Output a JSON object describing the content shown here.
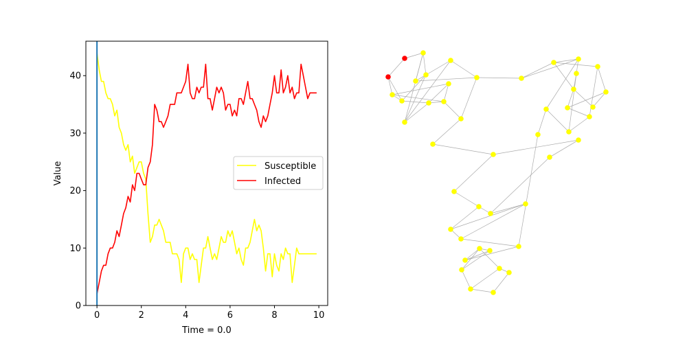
{
  "chart_data": [
    {
      "type": "line",
      "xlabel": "Time = 0.0",
      "ylabel": "Value",
      "xlim": [
        -0.5,
        10.4
      ],
      "ylim": [
        0,
        46
      ],
      "xticks": [
        0,
        2,
        4,
        6,
        8,
        10
      ],
      "yticks": [
        0,
        10,
        20,
        30,
        40
      ],
      "grid": false,
      "legend_position": "center-right",
      "time_marker_x": 0.0,
      "time_marker_color": "#1f77b4",
      "x": [
        0.0,
        0.1,
        0.2,
        0.3,
        0.4,
        0.5,
        0.6,
        0.7,
        0.8,
        0.9,
        1.0,
        1.1,
        1.2,
        1.3,
        1.4,
        1.5,
        1.6,
        1.7,
        1.8,
        1.9,
        2.0,
        2.1,
        2.2,
        2.3,
        2.4,
        2.5,
        2.6,
        2.7,
        2.8,
        2.9,
        3.0,
        3.1,
        3.2,
        3.3,
        3.4,
        3.5,
        3.6,
        3.7,
        3.8,
        3.9,
        4.0,
        4.1,
        4.2,
        4.3,
        4.4,
        4.5,
        4.6,
        4.7,
        4.8,
        4.9,
        5.0,
        5.1,
        5.2,
        5.3,
        5.4,
        5.5,
        5.6,
        5.7,
        5.8,
        5.9,
        6.0,
        6.1,
        6.2,
        6.3,
        6.4,
        6.5,
        6.6,
        6.7,
        6.8,
        6.9,
        7.0,
        7.1,
        7.2,
        7.3,
        7.4,
        7.5,
        7.6,
        7.7,
        7.8,
        7.9,
        8.0,
        8.1,
        8.2,
        8.3,
        8.4,
        8.5,
        8.6,
        8.7,
        8.8,
        8.9,
        9.0,
        9.1,
        9.2,
        9.3,
        9.4,
        9.5,
        9.6,
        9.7,
        9.8,
        9.9
      ],
      "series": [
        {
          "name": "Susceptible",
          "color": "#ffff00",
          "values": [
            44,
            41,
            39,
            39,
            37,
            36,
            36,
            35,
            33,
            34,
            31,
            30,
            28,
            27,
            28,
            25,
            26,
            23,
            24,
            25,
            25,
            23,
            22,
            16,
            11,
            12,
            14,
            14,
            15,
            14,
            13,
            11,
            11,
            11,
            9,
            9,
            9,
            8,
            4,
            9,
            10,
            10,
            8,
            9,
            8,
            8,
            4,
            7,
            10,
            10,
            12,
            10,
            8,
            9,
            8,
            10,
            12,
            11,
            11,
            13,
            12,
            13,
            11,
            9,
            10,
            8,
            7,
            10,
            10,
            11,
            13,
            15,
            13,
            14,
            13,
            10,
            6,
            9,
            9,
            5,
            9,
            7,
            6,
            9,
            8,
            10,
            9,
            9,
            4,
            7,
            10,
            9,
            9,
            9,
            9,
            9,
            9,
            9,
            9,
            9
          ]
        },
        {
          "name": "Infected",
          "color": "#ff0000",
          "values": [
            2,
            4,
            6,
            7,
            7,
            9,
            10,
            10,
            11,
            13,
            12,
            14,
            16,
            17,
            19,
            18,
            21,
            20,
            23,
            23,
            22,
            21,
            21,
            24,
            25,
            28,
            35,
            34,
            32,
            32,
            31,
            32,
            33,
            35,
            35,
            35,
            37,
            37,
            37,
            38,
            39,
            42,
            37,
            36,
            36,
            38,
            37,
            38,
            38,
            42,
            36,
            36,
            34,
            36,
            38,
            37,
            38,
            37,
            34,
            35,
            35,
            33,
            34,
            33,
            36,
            36,
            35,
            37,
            39,
            36,
            36,
            35,
            34,
            32,
            31,
            33,
            32,
            33,
            35,
            37,
            40,
            37,
            37,
            41,
            37,
            38,
            40,
            37,
            38,
            36,
            37,
            37,
            42,
            40,
            38,
            36,
            37,
            37,
            37,
            37
          ]
        }
      ]
    },
    {
      "type": "network",
      "node_colors": {
        "susceptible": "#ffff00",
        "infected": "#ff0000"
      },
      "edge_color": "#aaaaaa",
      "nodes": [
        {
          "state": "infected"
        },
        {
          "state": "infected"
        },
        {
          "state": "susceptible"
        },
        {
          "state": "susceptible"
        },
        {
          "state": "susceptible"
        },
        {
          "state": "susceptible"
        },
        {
          "state": "susceptible"
        },
        {
          "state": "susceptible"
        },
        {
          "state": "susceptible"
        },
        {
          "state": "susceptible"
        },
        {
          "state": "susceptible"
        },
        {
          "state": "susceptible"
        },
        {
          "state": "susceptible"
        },
        {
          "state": "susceptible"
        },
        {
          "state": "susceptible"
        },
        {
          "state": "susceptible"
        },
        {
          "state": "susceptible"
        },
        {
          "state": "susceptible"
        },
        {
          "state": "susceptible"
        },
        {
          "state": "susceptible"
        },
        {
          "state": "susceptible"
        },
        {
          "state": "susceptible"
        },
        {
          "state": "susceptible"
        },
        {
          "state": "susceptible"
        },
        {
          "state": "susceptible"
        },
        {
          "state": "susceptible"
        },
        {
          "state": "susceptible"
        },
        {
          "state": "susceptible"
        },
        {
          "state": "susceptible"
        },
        {
          "state": "susceptible"
        },
        {
          "state": "susceptible"
        },
        {
          "state": "susceptible"
        },
        {
          "state": "susceptible"
        },
        {
          "state": "susceptible"
        },
        {
          "state": "susceptible"
        },
        {
          "state": "susceptible"
        },
        {
          "state": "susceptible"
        },
        {
          "state": "susceptible"
        },
        {
          "state": "susceptible"
        },
        {
          "state": "susceptible"
        },
        {
          "state": "susceptible"
        },
        {
          "state": "susceptible"
        },
        {
          "state": "susceptible"
        },
        {
          "state": "susceptible"
        },
        {
          "state": "susceptible"
        },
        {
          "state": "susceptible"
        }
      ],
      "edges": [
        [
          0,
          1
        ],
        [
          0,
          2
        ],
        [
          0,
          3
        ],
        [
          1,
          4
        ],
        [
          4,
          5
        ],
        [
          4,
          6
        ],
        [
          4,
          7
        ],
        [
          5,
          6
        ],
        [
          6,
          3
        ],
        [
          3,
          8
        ],
        [
          2,
          3
        ],
        [
          2,
          9
        ],
        [
          9,
          8
        ],
        [
          9,
          10
        ],
        [
          8,
          10
        ],
        [
          6,
          7
        ],
        [
          7,
          8
        ],
        [
          7,
          11
        ],
        [
          5,
          11
        ],
        [
          5,
          12
        ],
        [
          11,
          12
        ],
        [
          2,
          10
        ],
        [
          10,
          13
        ],
        [
          12,
          13
        ],
        [
          13,
          14
        ],
        [
          12,
          15
        ],
        [
          15,
          16
        ],
        [
          15,
          17
        ],
        [
          16,
          17
        ],
        [
          16,
          18
        ],
        [
          17,
          19
        ],
        [
          16,
          20
        ],
        [
          19,
          20
        ],
        [
          18,
          21
        ],
        [
          20,
          22
        ],
        [
          21,
          22
        ],
        [
          20,
          23
        ],
        [
          21,
          23
        ],
        [
          18,
          24
        ],
        [
          23,
          24
        ],
        [
          17,
          25
        ],
        [
          19,
          26
        ],
        [
          24,
          26
        ],
        [
          25,
          26
        ],
        [
          25,
          27
        ],
        [
          14,
          28
        ],
        [
          28,
          29
        ],
        [
          29,
          30
        ],
        [
          28,
          31
        ],
        [
          29,
          30
        ],
        [
          31,
          32
        ],
        [
          30,
          33
        ],
        [
          32,
          33
        ],
        [
          32,
          34
        ],
        [
          33,
          35
        ],
        [
          34,
          35
        ],
        [
          35,
          36
        ],
        [
          34,
          36
        ],
        [
          36,
          37
        ],
        [
          27,
          37
        ],
        [
          37,
          38
        ],
        [
          38,
          39
        ],
        [
          38,
          40
        ],
        [
          39,
          40
        ],
        [
          39,
          41
        ],
        [
          40,
          41
        ],
        [
          39,
          42
        ],
        [
          41,
          43
        ],
        [
          42,
          43
        ],
        [
          42,
          44
        ],
        [
          43,
          45
        ],
        [
          44,
          45
        ]
      ]
    }
  ]
}
